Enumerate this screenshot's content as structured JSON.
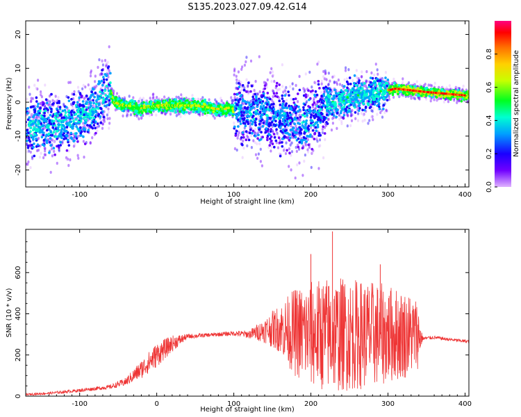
{
  "title": "S135.2023.027.09.42.G14",
  "chart_data": [
    {
      "type": "heatmap",
      "xlabel": "Height of straight line (km)",
      "ylabel": "Frequency (Hz)",
      "xlim": [
        -170,
        405
      ],
      "ylim": [
        -25,
        24
      ],
      "x_ticks": [
        -100,
        0,
        100,
        200,
        300,
        400
      ],
      "y_ticks": [
        -20,
        -10,
        0,
        10,
        20
      ],
      "grid": false,
      "colorbar": {
        "label": "Normalized spectral amplitude",
        "range": [
          0.0,
          1.0
        ],
        "ticks": [
          "0.0",
          "0.2",
          "0.4",
          "0.6",
          "0.8"
        ],
        "colors": [
          "#e0b3ff",
          "#7000ff",
          "#1a00ff",
          "#00a0ff",
          "#00ffd0",
          "#00ff20",
          "#c8ff00",
          "#ffd000",
          "#ff7000",
          "#ff0000",
          "#ff0080"
        ]
      },
      "ridge": {
        "x": [
          -150,
          -130,
          -110,
          -90,
          -75,
          -62,
          -55,
          -45,
          -35,
          -25,
          0,
          50,
          80,
          100,
          120,
          150,
          180,
          200,
          220,
          240,
          260,
          290,
          310,
          350,
          400
        ],
        "y": [
          -7,
          -7,
          -6,
          -4,
          0,
          4,
          0,
          -1,
          -1,
          -2,
          -1,
          -1,
          -2,
          -2,
          -3,
          -4,
          -6,
          -6,
          0,
          0,
          2,
          3,
          4,
          3,
          2
        ]
      }
    },
    {
      "type": "line",
      "xlabel": "Height of straight line (km)",
      "ylabel": "SNR (10 * v/v)",
      "xlim": [
        -170,
        405
      ],
      "ylim": [
        0,
        810
      ],
      "x_ticks": [
        -100,
        0,
        100,
        200,
        300,
        400
      ],
      "y_ticks": [
        0,
        200,
        400,
        600
      ],
      "color": "#ee3333",
      "grid": false,
      "envelope": {
        "x": [
          -170,
          -140,
          -100,
          -60,
          -40,
          -20,
          0,
          20,
          40,
          60,
          80,
          100,
          120,
          140,
          160,
          180,
          200,
          220,
          240,
          260,
          280,
          300,
          320,
          338,
          345,
          360,
          380,
          405
        ],
        "mean": [
          8,
          14,
          28,
          45,
          70,
          130,
          200,
          255,
          290,
          295,
          300,
          305,
          300,
          320,
          330,
          310,
          300,
          300,
          300,
          300,
          300,
          300,
          300,
          300,
          280,
          285,
          275,
          265
        ],
        "spread": [
          5,
          6,
          8,
          10,
          20,
          45,
          60,
          40,
          12,
          10,
          10,
          12,
          20,
          60,
          120,
          220,
          260,
          280,
          280,
          270,
          260,
          240,
          220,
          180,
          10,
          8,
          8,
          8
        ]
      },
      "peaks": [
        {
          "x": 228,
          "y": 800
        },
        {
          "x": 200,
          "y": 690
        },
        {
          "x": 290,
          "y": 640
        }
      ]
    }
  ]
}
